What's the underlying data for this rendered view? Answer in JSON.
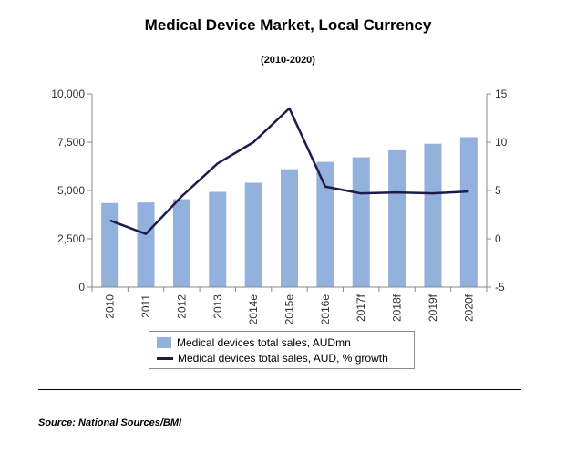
{
  "chart_data": {
    "type": "bar",
    "title": "Medical Device Market, Local Currency",
    "subtitle": "(2010-2020)",
    "categories": [
      "2010",
      "2011",
      "2012",
      "2013",
      "2014e",
      "2015e",
      "2016e",
      "2017f",
      "2018f",
      "2019f",
      "2020f"
    ],
    "series": [
      {
        "name": "Medical devices total sales, AUDmn",
        "type": "bar",
        "axis": "left",
        "color": "#92b1dc",
        "values": [
          4350,
          4380,
          4550,
          4930,
          5400,
          6100,
          6480,
          6720,
          7080,
          7420,
          7760
        ]
      },
      {
        "name": "Medical devices total sales, AUD, % growth",
        "type": "line",
        "axis": "right",
        "color": "#1f1a4e",
        "values": [
          1.9,
          0.5,
          4.4,
          7.8,
          10.0,
          13.5,
          5.4,
          4.7,
          4.8,
          4.7,
          4.9
        ]
      }
    ],
    "y_left": {
      "min": 0,
      "max": 10000,
      "ticks": [
        "0",
        "2,500",
        "5,000",
        "7,500",
        "10,000"
      ],
      "tick_values": [
        0,
        2500,
        5000,
        7500,
        10000
      ]
    },
    "y_right": {
      "min": -5,
      "max": 15,
      "ticks": [
        "-5",
        "0",
        "5",
        "10",
        "15"
      ],
      "tick_values": [
        -5,
        0,
        5,
        10,
        15
      ]
    },
    "grid": false,
    "legend_position": "bottom"
  },
  "source": "Source: National Sources/BMI"
}
